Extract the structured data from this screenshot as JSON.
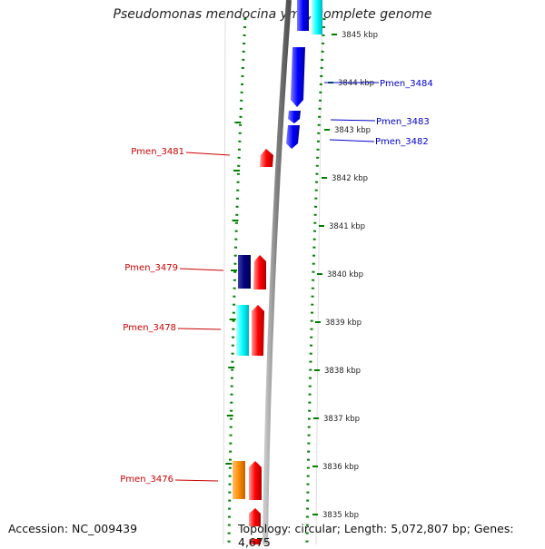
{
  "title": "Pseudomonas mendocina ymp, complete genome",
  "footer": {
    "accession": "Accession: NC_009439",
    "topology": "Topology: circular; Length: 5,072,807 bp; Genes: 4,675"
  },
  "colors": {
    "background": "#ffffff",
    "red": "#ff0000",
    "blue": "#0000ff",
    "navy": "#000080",
    "cyan": "#00ffff",
    "orange": "#ff8c00",
    "green": "#008000",
    "gray": "#808080"
  },
  "ticks": [
    {
      "kbp": 3845,
      "label": "3845 kbp"
    },
    {
      "kbp": 3844,
      "label": "3844 kbp"
    },
    {
      "kbp": 3843,
      "label": "3843 kbp"
    },
    {
      "kbp": 3842,
      "label": "3842 kbp"
    },
    {
      "kbp": 3841,
      "label": "3841 kbp"
    },
    {
      "kbp": 3840,
      "label": "3840 kbp"
    },
    {
      "kbp": 3839,
      "label": "3839 kbp"
    },
    {
      "kbp": 3838,
      "label": "3838 kbp"
    },
    {
      "kbp": 3837,
      "label": "3837 kbp"
    },
    {
      "kbp": 3836,
      "label": "3836 kbp"
    },
    {
      "kbp": 3835,
      "label": "3835 kbp"
    }
  ],
  "gene_labels": [
    {
      "name": "Pmen_3484",
      "color": "#0000cc"
    },
    {
      "name": "Pmen_3483",
      "color": "#0000cc"
    },
    {
      "name": "Pmen_3482",
      "color": "#0000cc"
    },
    {
      "name": "Pmen_3481",
      "color": "#cc0000"
    },
    {
      "name": "Pmen_3479",
      "color": "#cc0000"
    },
    {
      "name": "Pmen_3478",
      "color": "#cc0000"
    },
    {
      "name": "Pmen_3476",
      "color": "#cc0000"
    }
  ]
}
